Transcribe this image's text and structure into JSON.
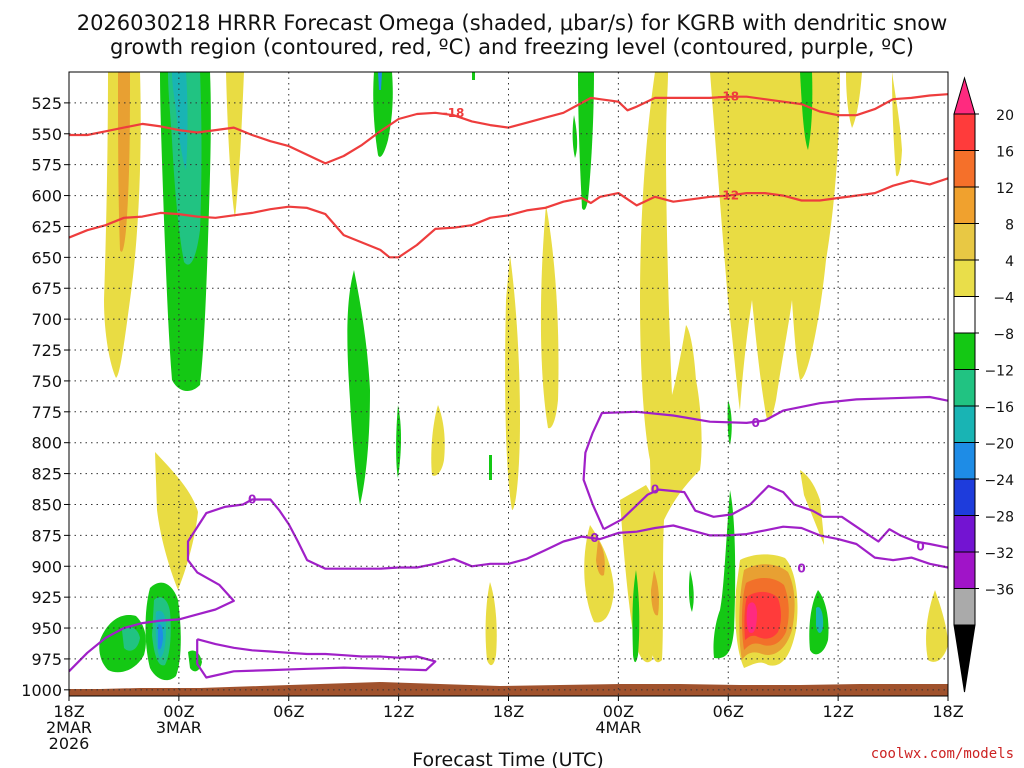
{
  "chart_data": {
    "type": "heatmap",
    "title_line1": "2026030218 HRRR Forecast Omega (shaded, μbar/s) for KGRB with dendritic snow",
    "title_line2": "growth region (contoured, red, ºC) and freezing level (contoured, purple, ºC)",
    "xlabel": "Forecast Time (UTC)",
    "credit": "coolwx.com/models",
    "x_range_hours": [
      0,
      48
    ],
    "y_range_hPa": [
      500,
      1005
    ],
    "y_ticks": [
      525,
      550,
      575,
      600,
      625,
      650,
      675,
      700,
      725,
      750,
      775,
      800,
      825,
      850,
      875,
      900,
      925,
      950,
      975,
      1000
    ],
    "x_ticks": [
      {
        "hour": 0,
        "lines": [
          "18Z",
          "2MAR",
          "2026"
        ]
      },
      {
        "hour": 6,
        "lines": [
          "00Z",
          "3MAR"
        ]
      },
      {
        "hour": 12,
        "lines": [
          "06Z"
        ]
      },
      {
        "hour": 18,
        "lines": [
          "12Z"
        ]
      },
      {
        "hour": 24,
        "lines": [
          "18Z"
        ]
      },
      {
        "hour": 30,
        "lines": [
          "00Z",
          "4MAR"
        ]
      },
      {
        "hour": 36,
        "lines": [
          "06Z"
        ]
      },
      {
        "hour": 42,
        "lines": [
          "12Z"
        ]
      },
      {
        "hour": 48,
        "lines": [
          "18Z"
        ]
      }
    ],
    "colorbar": {
      "labels": [
        "20",
        "16",
        "12",
        "8",
        "4",
        "−4",
        "−8",
        "−12",
        "−16",
        "−20",
        "−24",
        "−28",
        "−32",
        "−36"
      ],
      "colors_top_to_bottom": [
        "#ff2a7f",
        "#ff3b3b",
        "#f5702a",
        "#f0a12e",
        "#e8c844",
        "#e9de4a",
        "#ffffff",
        "#14c814",
        "#21c382",
        "#19b4b4",
        "#1e8ce6",
        "#1e3cdc",
        "#7314d2",
        "#a014c8",
        "#aaaaaa",
        "#000000"
      ]
    },
    "contours": [
      {
        "label": "-18",
        "color": "#ee3d3d",
        "points": [
          [
            0,
            551
          ],
          [
            1,
            551
          ],
          [
            2,
            548
          ],
          [
            3,
            545
          ],
          [
            4,
            542
          ],
          [
            5,
            544
          ],
          [
            6,
            547
          ],
          [
            7,
            549
          ],
          [
            8,
            547
          ],
          [
            9,
            545
          ],
          [
            10,
            551
          ],
          [
            11,
            556
          ],
          [
            12,
            560
          ],
          [
            13,
            567
          ],
          [
            14,
            574
          ],
          [
            15,
            568
          ],
          [
            16,
            559
          ],
          [
            17,
            548
          ],
          [
            18,
            538
          ],
          [
            19,
            534
          ],
          [
            20,
            533
          ],
          [
            21,
            535
          ],
          [
            22,
            540
          ],
          [
            23,
            543
          ],
          [
            24,
            545
          ],
          [
            25,
            541
          ],
          [
            26,
            537
          ],
          [
            27,
            533
          ],
          [
            28,
            525
          ],
          [
            28.5,
            521
          ],
          [
            29,
            522
          ],
          [
            30,
            524
          ],
          [
            30.5,
            531
          ],
          [
            31,
            528
          ],
          [
            32,
            521
          ],
          [
            33,
            521
          ],
          [
            34,
            521
          ],
          [
            35,
            521
          ],
          [
            36,
            520
          ],
          [
            37,
            520
          ],
          [
            38,
            522
          ],
          [
            39,
            524
          ],
          [
            40,
            526
          ],
          [
            41,
            532
          ],
          [
            42,
            535
          ],
          [
            43,
            535
          ],
          [
            44,
            530
          ],
          [
            45,
            522
          ],
          [
            46,
            521
          ],
          [
            47,
            519
          ],
          [
            48,
            518
          ]
        ]
      },
      {
        "label": "-12",
        "color": "#ee3d3d",
        "points": [
          [
            0,
            634
          ],
          [
            1,
            628
          ],
          [
            2,
            624
          ],
          [
            3,
            618
          ],
          [
            4,
            617
          ],
          [
            5,
            614
          ],
          [
            6,
            615
          ],
          [
            7,
            617
          ],
          [
            8,
            618
          ],
          [
            9,
            616
          ],
          [
            10,
            614
          ],
          [
            11,
            611
          ],
          [
            12,
            609
          ],
          [
            13,
            610
          ],
          [
            14,
            615
          ],
          [
            15,
            632
          ],
          [
            16,
            638
          ],
          [
            17,
            644
          ],
          [
            17.5,
            650
          ],
          [
            18,
            650
          ],
          [
            19,
            640
          ],
          [
            20,
            627
          ],
          [
            21,
            626
          ],
          [
            22,
            624
          ],
          [
            23,
            618
          ],
          [
            24,
            616
          ],
          [
            25,
            612
          ],
          [
            26,
            610
          ],
          [
            27,
            605
          ],
          [
            28,
            602
          ],
          [
            28.5,
            606
          ],
          [
            29,
            601
          ],
          [
            30,
            598
          ],
          [
            31,
            608
          ],
          [
            32,
            601
          ],
          [
            33,
            605
          ],
          [
            34,
            603
          ],
          [
            35,
            601
          ],
          [
            36,
            600
          ],
          [
            37,
            598
          ],
          [
            38,
            598
          ],
          [
            39,
            600
          ],
          [
            40,
            604
          ],
          [
            41,
            604
          ],
          [
            42,
            602
          ],
          [
            43,
            600
          ],
          [
            44,
            598
          ],
          [
            45,
            592
          ],
          [
            46,
            588
          ],
          [
            47,
            591
          ],
          [
            48,
            586
          ]
        ]
      },
      {
        "label": "0",
        "color": "#a020c8",
        "points": [
          [
            0,
            985
          ],
          [
            1,
            970
          ],
          [
            2,
            958
          ],
          [
            3,
            950
          ],
          [
            4,
            946
          ],
          [
            5,
            944
          ],
          [
            6,
            943
          ],
          [
            6.5,
            941
          ],
          [
            7,
            939
          ],
          [
            8,
            935
          ],
          [
            9,
            928
          ],
          [
            8.2,
            915
          ],
          [
            7,
            905
          ],
          [
            6.5,
            895
          ],
          [
            6.5,
            880
          ],
          [
            7.5,
            857
          ],
          [
            8.5,
            852
          ],
          [
            9.5,
            850
          ],
          [
            10,
            846
          ],
          [
            11,
            846
          ],
          [
            11.5,
            855
          ],
          [
            12,
            866
          ],
          [
            12.5,
            880
          ],
          [
            13,
            895
          ],
          [
            14,
            902
          ],
          [
            15,
            902
          ],
          [
            16,
            902
          ],
          [
            17,
            902
          ],
          [
            18,
            901
          ],
          [
            19,
            901
          ],
          [
            20,
            898
          ],
          [
            21,
            894
          ],
          [
            22,
            900
          ],
          [
            23,
            898
          ],
          [
            24,
            898
          ],
          [
            25,
            894
          ],
          [
            26,
            887
          ],
          [
            27,
            880
          ],
          [
            28,
            876
          ],
          [
            29,
            878
          ],
          [
            30,
            873
          ],
          [
            31,
            872
          ],
          [
            32,
            869
          ],
          [
            33,
            867
          ],
          [
            34,
            871
          ],
          [
            35,
            875
          ],
          [
            36,
            875
          ],
          [
            37,
            874
          ],
          [
            38,
            871
          ],
          [
            39,
            868
          ],
          [
            40,
            869
          ],
          [
            41,
            875
          ],
          [
            42,
            878
          ],
          [
            43,
            882
          ],
          [
            44,
            893
          ],
          [
            45,
            895
          ],
          [
            46,
            893
          ],
          [
            47,
            898
          ],
          [
            48,
            901
          ]
        ]
      },
      {
        "label": "0",
        "color": "#a020c8",
        "points": [
          [
            29.2,
            870
          ],
          [
            28.6,
            850
          ],
          [
            28.1,
            830
          ],
          [
            28.2,
            808
          ],
          [
            28.6,
            792
          ],
          [
            29.1,
            776
          ],
          [
            31,
            775
          ],
          [
            33,
            778
          ],
          [
            35,
            783
          ],
          [
            37,
            784
          ],
          [
            38,
            782
          ],
          [
            39,
            774
          ],
          [
            41,
            768
          ],
          [
            43,
            765
          ],
          [
            45,
            764
          ],
          [
            47,
            763
          ],
          [
            48,
            766
          ]
        ]
      },
      {
        "label": "0",
        "color": "#a020c8",
        "points": [
          [
            29.2,
            870
          ],
          [
            30.2,
            862
          ],
          [
            31.6,
            842
          ],
          [
            32.2,
            838
          ],
          [
            33.6,
            840
          ],
          [
            34.2,
            855
          ],
          [
            35.2,
            860
          ],
          [
            36.2,
            858
          ],
          [
            37.2,
            850
          ],
          [
            38.2,
            835
          ],
          [
            39,
            840
          ],
          [
            39.6,
            850
          ],
          [
            40.6,
            855
          ],
          [
            41.2,
            860
          ],
          [
            42.2,
            860
          ],
          [
            43.2,
            870
          ],
          [
            44.2,
            880
          ],
          [
            44.8,
            870
          ],
          [
            45.4,
            875
          ],
          [
            46.2,
            880
          ],
          [
            47,
            882
          ],
          [
            48,
            885
          ]
        ]
      },
      {
        "label": "",
        "color": "#a020c8",
        "points": [
          [
            7,
            959
          ],
          [
            8,
            963
          ],
          [
            9,
            966
          ],
          [
            10,
            968
          ],
          [
            11,
            969
          ],
          [
            12,
            970
          ],
          [
            13,
            971
          ],
          [
            14,
            971
          ],
          [
            15,
            972
          ],
          [
            16,
            973
          ],
          [
            17,
            973
          ],
          [
            18,
            974
          ],
          [
            19,
            973
          ],
          [
            20,
            977
          ],
          [
            19.5,
            984
          ],
          [
            17,
            983
          ],
          [
            15,
            982
          ],
          [
            13,
            983
          ],
          [
            11,
            984
          ],
          [
            9,
            985
          ],
          [
            7.5,
            990
          ],
          [
            7,
            979
          ],
          [
            7,
            959
          ]
        ]
      }
    ]
  }
}
